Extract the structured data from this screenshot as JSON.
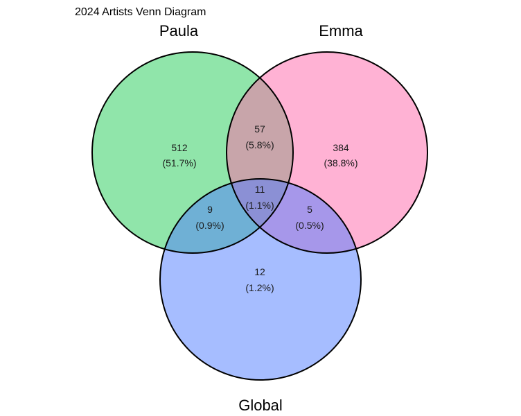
{
  "title": "2024 Artists Venn Diagram",
  "sets": [
    {
      "name": "Paula",
      "color": "#22CC55"
    },
    {
      "name": "Emma",
      "color": "#FF66AA"
    },
    {
      "name": "Global",
      "color": "#4D7CFF"
    }
  ],
  "fill_opacity": 0.5,
  "regions": {
    "paula_only": {
      "sets": [
        "Paula"
      ],
      "count": "512",
      "percent": "(51.7%)"
    },
    "emma_only": {
      "sets": [
        "Emma"
      ],
      "count": "384",
      "percent": "(38.8%)"
    },
    "global_only": {
      "sets": [
        "Global"
      ],
      "count": "12",
      "percent": "(1.2%)"
    },
    "paula_emma": {
      "sets": [
        "Paula",
        "Emma"
      ],
      "count": "57",
      "percent": "(5.8%)"
    },
    "paula_global": {
      "sets": [
        "Paula",
        "Global"
      ],
      "count": "9",
      "percent": "(0.9%)"
    },
    "emma_global": {
      "sets": [
        "Emma",
        "Global"
      ],
      "count": "5",
      "percent": "(0.5%)"
    },
    "all_three": {
      "sets": [
        "Paula",
        "Emma",
        "Global"
      ],
      "count": "11",
      "percent": "(1.1%)"
    }
  }
}
